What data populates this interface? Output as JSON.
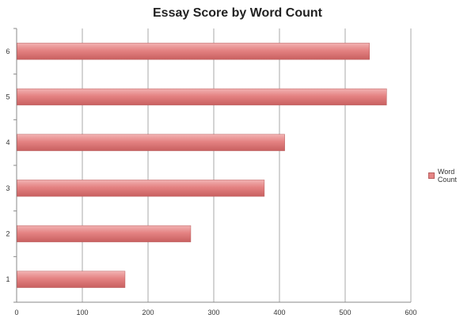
{
  "chart_data": {
    "type": "bar",
    "orientation": "horizontal",
    "title": "Essay Score by Word Count",
    "xlabel": "",
    "ylabel": "",
    "categories": [
      "1",
      "2",
      "3",
      "4",
      "5",
      "6"
    ],
    "series": [
      {
        "name": "Word Count",
        "values": [
          165,
          265,
          377,
          408,
          563,
          537
        ],
        "color": "#e58585"
      }
    ],
    "xlim": [
      0,
      600
    ],
    "xticks": [
      "0",
      "100",
      "200",
      "300",
      "400",
      "500",
      "600"
    ],
    "grid": "vertical",
    "legend": "right"
  }
}
